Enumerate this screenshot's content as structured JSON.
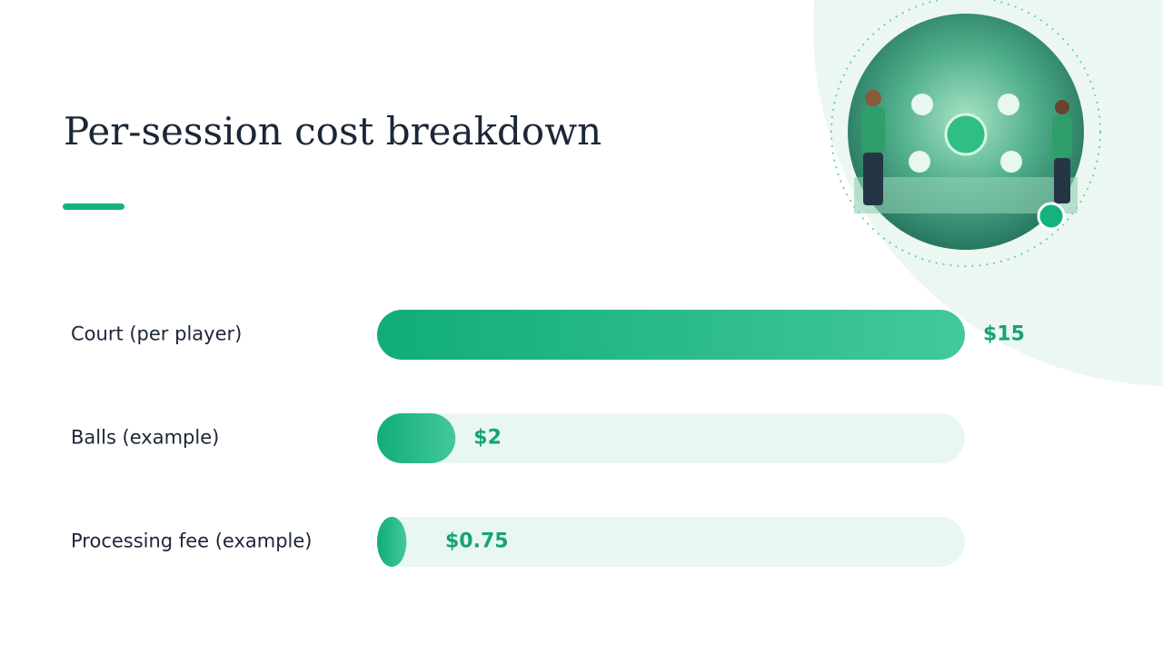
{
  "chart_data": {
    "type": "bar",
    "orientation": "horizontal",
    "title": "Per-session cost breakdown",
    "categories": [
      "Court (per player)",
      "Balls (example)",
      "Processing fee (example)"
    ],
    "values": [
      15,
      2,
      0.75
    ],
    "value_labels": [
      "$15",
      "$2",
      "$0.75"
    ],
    "color": "#14b27c"
  }
}
